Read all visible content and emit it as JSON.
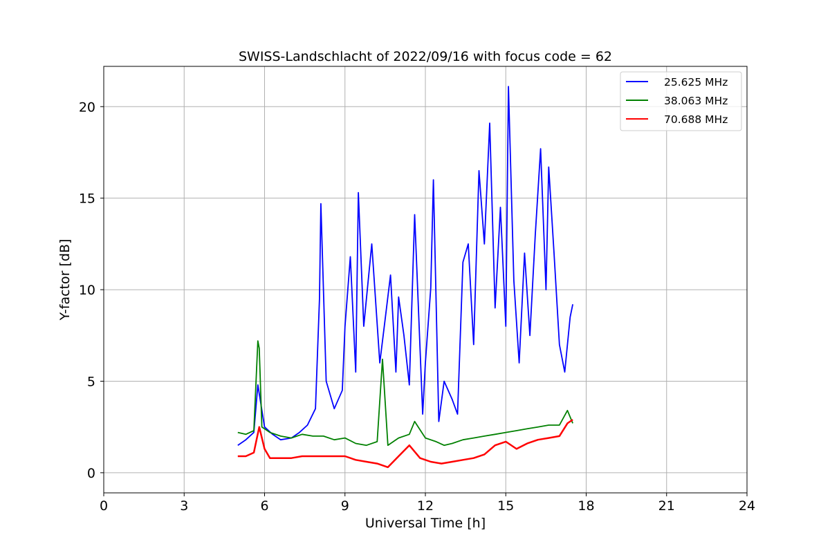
{
  "chart_data": {
    "type": "line",
    "title": "SWISS-Landschlacht of 2022/09/16 with focus code = 62",
    "xlabel": "Universal Time [h]",
    "ylabel": "Y-factor [dB]",
    "xlim": [
      0,
      24
    ],
    "ylim": [
      -1.1,
      22.2
    ],
    "xticks": [
      0,
      3,
      6,
      9,
      12,
      15,
      18,
      21,
      24
    ],
    "yticks": [
      0,
      5,
      10,
      15,
      20
    ],
    "grid": true,
    "legend_position": "upper right",
    "series": [
      {
        "name": "25.625 MHz",
        "color": "#0000ff",
        "x": [
          5.0,
          5.3,
          5.6,
          5.75,
          6.0,
          6.3,
          6.6,
          7.0,
          7.3,
          7.6,
          7.9,
          8.05,
          8.1,
          8.3,
          8.6,
          8.9,
          9.0,
          9.2,
          9.4,
          9.5,
          9.7,
          10.0,
          10.3,
          10.5,
          10.7,
          10.9,
          11.0,
          11.2,
          11.4,
          11.6,
          11.9,
          12.0,
          12.2,
          12.3,
          12.5,
          12.7,
          13.0,
          13.2,
          13.4,
          13.6,
          13.8,
          14.0,
          14.2,
          14.4,
          14.6,
          14.8,
          15.0,
          15.1,
          15.3,
          15.5,
          15.7,
          15.9,
          16.1,
          16.3,
          16.5,
          16.6,
          16.8,
          17.0,
          17.2,
          17.4,
          17.5
        ],
        "y": [
          1.5,
          1.8,
          2.2,
          4.8,
          2.5,
          2.1,
          1.8,
          1.9,
          2.2,
          2.6,
          3.5,
          9.5,
          14.7,
          5.0,
          3.5,
          4.5,
          8.0,
          11.8,
          5.5,
          15.3,
          8.0,
          12.5,
          6.0,
          8.4,
          10.8,
          5.5,
          9.6,
          7.5,
          4.8,
          14.1,
          3.2,
          6.0,
          10.1,
          16.0,
          2.8,
          5.0,
          4.0,
          3.2,
          11.5,
          12.5,
          7.0,
          16.5,
          12.5,
          19.1,
          9.0,
          14.5,
          8.0,
          21.1,
          10.5,
          6.0,
          12.0,
          7.5,
          13.0,
          17.7,
          10.0,
          16.7,
          12.0,
          7.0,
          5.5,
          8.5,
          9.2
        ]
      },
      {
        "name": "38.063 MHz",
        "color": "#008000",
        "x": [
          5.0,
          5.3,
          5.6,
          5.75,
          5.8,
          5.9,
          6.2,
          6.6,
          7.0,
          7.4,
          7.8,
          8.2,
          8.6,
          9.0,
          9.4,
          9.8,
          10.2,
          10.4,
          10.6,
          11.0,
          11.4,
          11.6,
          12.0,
          12.4,
          12.7,
          13.0,
          13.4,
          13.8,
          14.2,
          14.6,
          15.0,
          15.4,
          15.8,
          16.2,
          16.6,
          17.0,
          17.3,
          17.5
        ],
        "y": [
          2.2,
          2.1,
          2.3,
          7.2,
          6.8,
          2.5,
          2.2,
          2.0,
          1.9,
          2.1,
          2.0,
          2.0,
          1.8,
          1.9,
          1.6,
          1.5,
          1.7,
          6.2,
          1.5,
          1.9,
          2.1,
          2.8,
          1.9,
          1.7,
          1.5,
          1.6,
          1.8,
          1.9,
          2.0,
          2.1,
          2.2,
          2.3,
          2.4,
          2.5,
          2.6,
          2.6,
          3.4,
          2.7
        ]
      },
      {
        "name": "70.688 MHz",
        "color": "#ff0000",
        "x": [
          5.0,
          5.3,
          5.6,
          5.8,
          6.0,
          6.2,
          6.6,
          7.0,
          7.4,
          7.8,
          8.2,
          8.6,
          9.0,
          9.4,
          9.8,
          10.2,
          10.6,
          11.0,
          11.4,
          11.8,
          12.2,
          12.6,
          13.0,
          13.4,
          13.8,
          14.2,
          14.6,
          15.0,
          15.4,
          15.8,
          16.2,
          16.6,
          17.0,
          17.3,
          17.5
        ],
        "y": [
          0.9,
          0.9,
          1.1,
          2.5,
          1.3,
          0.8,
          0.8,
          0.8,
          0.9,
          0.9,
          0.9,
          0.9,
          0.9,
          0.7,
          0.6,
          0.5,
          0.3,
          0.9,
          1.5,
          0.8,
          0.6,
          0.5,
          0.6,
          0.7,
          0.8,
          1.0,
          1.5,
          1.7,
          1.3,
          1.6,
          1.8,
          1.9,
          2.0,
          2.7,
          2.9
        ]
      }
    ]
  }
}
